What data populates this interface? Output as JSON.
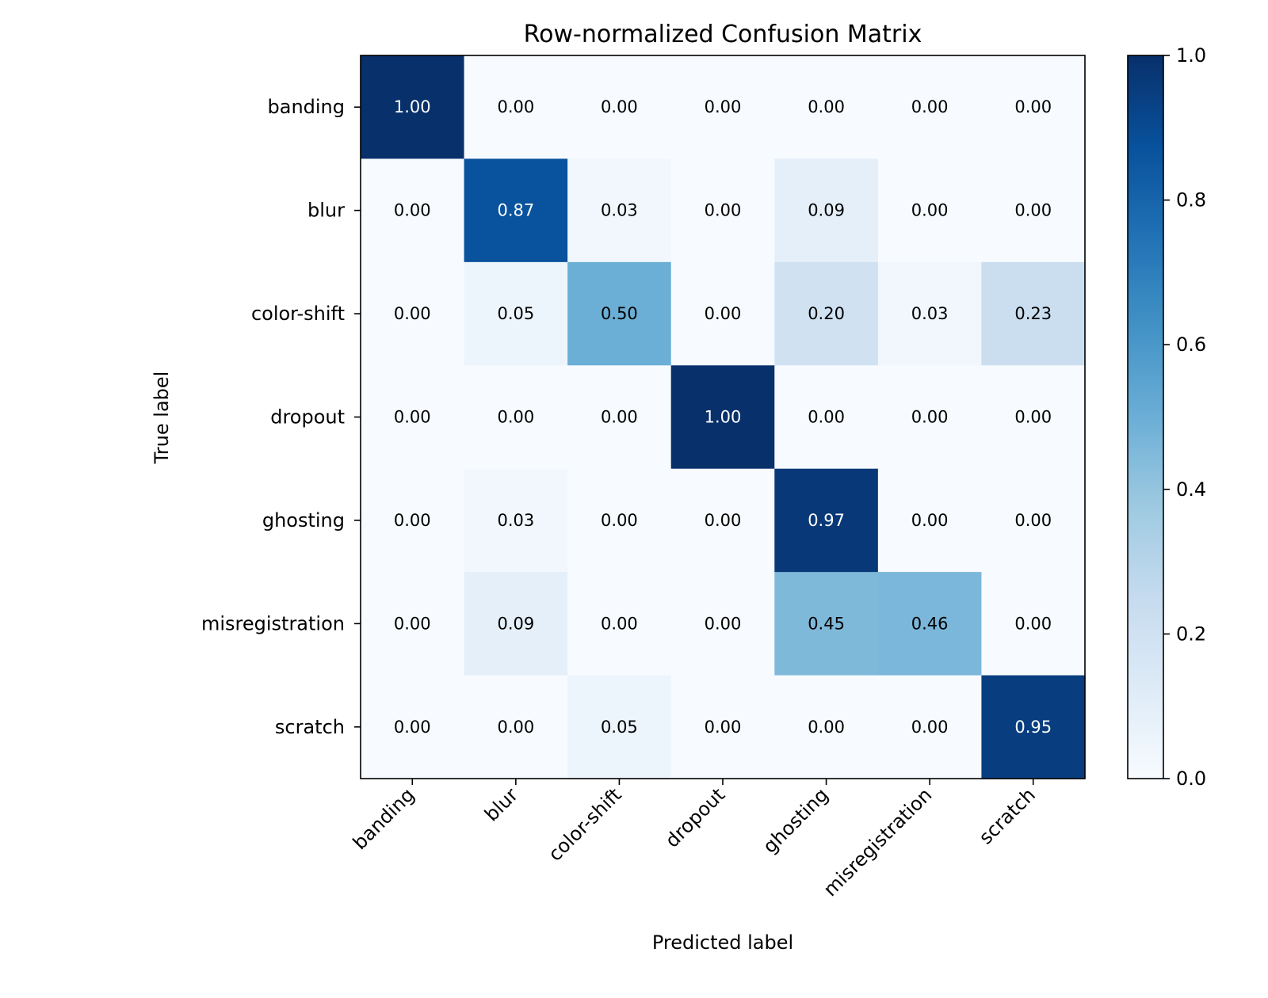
{
  "chart_data": {
    "type": "heatmap",
    "title": "Row-normalized Confusion Matrix",
    "xlabel": "Predicted label",
    "ylabel": "True label",
    "x_categories": [
      "banding",
      "blur",
      "color-shift",
      "dropout",
      "ghosting",
      "misregistration",
      "scratch"
    ],
    "y_categories": [
      "banding",
      "blur",
      "color-shift",
      "dropout",
      "ghosting",
      "misregistration",
      "scratch"
    ],
    "values": [
      [
        1.0,
        0.0,
        0.0,
        0.0,
        0.0,
        0.0,
        0.0
      ],
      [
        0.0,
        0.87,
        0.03,
        0.0,
        0.09,
        0.0,
        0.0
      ],
      [
        0.0,
        0.05,
        0.5,
        0.0,
        0.2,
        0.03,
        0.23
      ],
      [
        0.0,
        0.0,
        0.0,
        1.0,
        0.0,
        0.0,
        0.0
      ],
      [
        0.0,
        0.03,
        0.0,
        0.0,
        0.97,
        0.0,
        0.0
      ],
      [
        0.0,
        0.09,
        0.0,
        0.0,
        0.45,
        0.46,
        0.0
      ],
      [
        0.0,
        0.0,
        0.05,
        0.0,
        0.0,
        0.0,
        0.95
      ]
    ],
    "value_format": "0.00",
    "colormap": "Blues",
    "colorbar": {
      "range": [
        0.0,
        1.0
      ],
      "ticks": [
        0.0,
        0.2,
        0.4,
        0.6,
        0.8,
        1.0
      ],
      "tick_labels": [
        "0.0",
        "0.2",
        "0.4",
        "0.6",
        "0.8",
        "1.0"
      ]
    },
    "grid": false
  }
}
